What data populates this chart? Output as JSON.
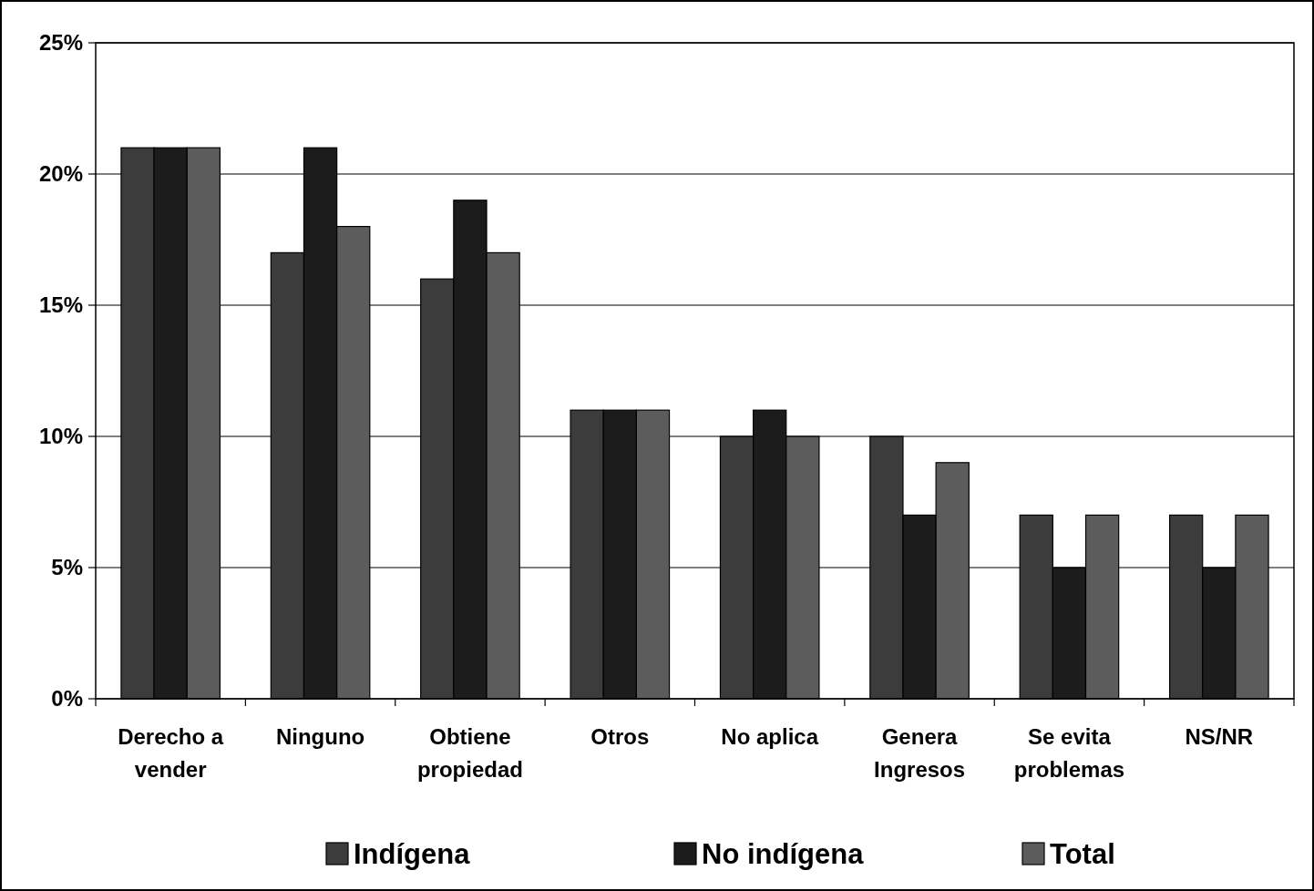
{
  "chart_data": {
    "type": "bar",
    "categories": [
      "Derecho a vender",
      "Ninguno",
      "Obtiene propiedad",
      "Otros",
      "No aplica",
      "Genera Ingresos",
      "Se evita problemas",
      "NS/NR"
    ],
    "series": [
      {
        "name": "Indígena",
        "color": "#3c3c3c",
        "values": [
          21,
          17,
          16,
          11,
          10,
          10,
          7,
          7
        ]
      },
      {
        "name": "No indígena",
        "color": "#1c1c1c",
        "values": [
          21,
          21,
          19,
          11,
          11,
          7,
          5,
          5
        ]
      },
      {
        "name": "Total",
        "color": "#5c5c5c",
        "values": [
          21,
          18,
          17,
          11,
          10,
          9,
          7,
          7
        ]
      }
    ],
    "ylim": [
      0,
      25
    ],
    "yticks": [
      {
        "value": 0,
        "label": "0%"
      },
      {
        "value": 5,
        "label": "5%"
      },
      {
        "value": 10,
        "label": "10%"
      },
      {
        "value": 15,
        "label": "15%"
      },
      {
        "value": 20,
        "label": "20%"
      },
      {
        "value": 25,
        "label": "25%"
      }
    ],
    "grid": "y",
    "legend": "bottom"
  }
}
